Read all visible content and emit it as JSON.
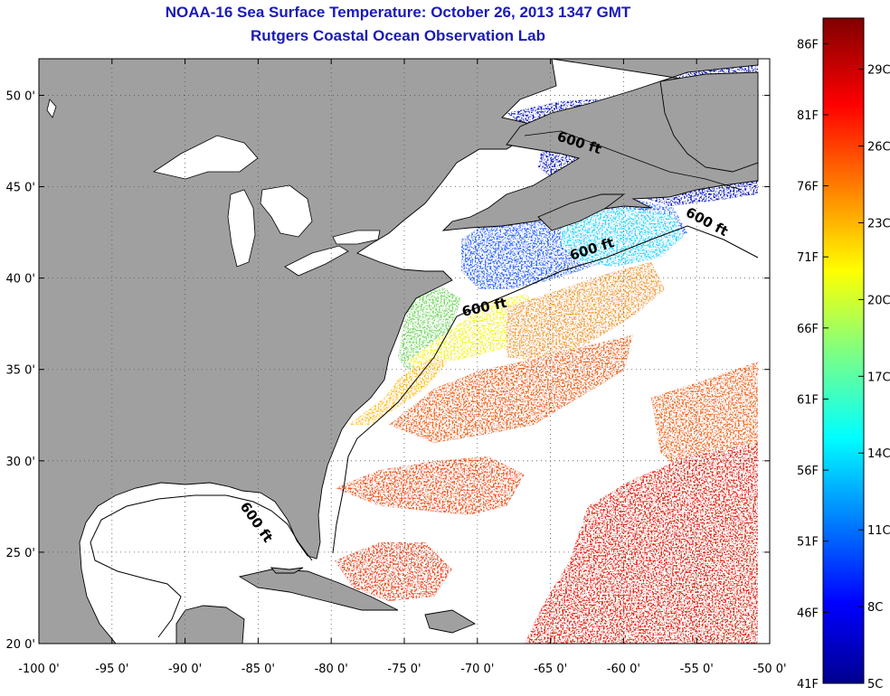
{
  "title": "NOAA-16 Sea Surface Temperature:  October 26, 2013 1347 GMT",
  "subtitle": "Rutgers Coastal Ocean Observation Lab",
  "map": {
    "lon_range": [
      -100,
      -50
    ],
    "lat_range": [
      20,
      52
    ],
    "lat_ticks": [
      {
        "value": 20,
        "label": "20 0'"
      },
      {
        "value": 25,
        "label": "25 0'"
      },
      {
        "value": 30,
        "label": "30 0'"
      },
      {
        "value": 35,
        "label": "35 0'"
      },
      {
        "value": 40,
        "label": "40 0'"
      },
      {
        "value": 45,
        "label": "45 0'"
      },
      {
        "value": 50,
        "label": "50 0'"
      }
    ],
    "lon_ticks": [
      {
        "value": -100,
        "label": "-100 0'"
      },
      {
        "value": -95,
        "label": "-95 0'"
      },
      {
        "value": -90,
        "label": "-90 0'"
      },
      {
        "value": -85,
        "label": "-85 0'"
      },
      {
        "value": -80,
        "label": "-80 0'"
      },
      {
        "value": -75,
        "label": "-75 0'"
      },
      {
        "value": -70,
        "label": "-70 0'"
      },
      {
        "value": -65,
        "label": "-65 0'"
      },
      {
        "value": -60,
        "label": "-60 0'"
      },
      {
        "value": -55,
        "label": "-55 0'"
      },
      {
        "value": -50,
        "label": "-50 0'"
      }
    ],
    "isobath_labels": [
      "600 ft",
      "600 ft",
      "600 ft",
      "600 ft",
      "600 ft"
    ],
    "colors": {
      "land": "#a0a0a0",
      "ocean_no_data": "#ffffff",
      "grid": "#555555"
    }
  },
  "colorbar": {
    "min_c": 5,
    "max_c": 31,
    "f_labels": [
      "86F",
      "81F",
      "76F",
      "71F",
      "66F",
      "61F",
      "56F",
      "51F",
      "46F",
      "41F"
    ],
    "c_labels": [
      "29C",
      "26C",
      "23C",
      "20C",
      "17C",
      "14C",
      "11C",
      "8C",
      "5C"
    ],
    "f_values": [
      86,
      81,
      76,
      71,
      66,
      61,
      56,
      51,
      46,
      41
    ],
    "c_values": [
      29,
      26,
      23,
      20,
      17,
      14,
      11,
      8,
      5
    ]
  }
}
